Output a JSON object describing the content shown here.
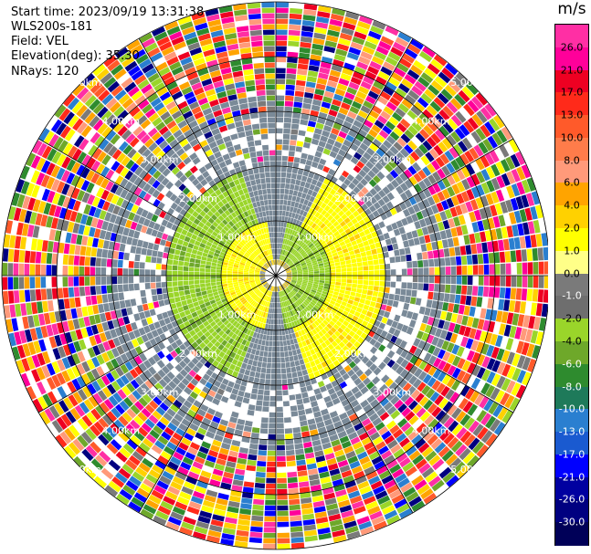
{
  "info": {
    "start_time": "Start time: 2023/09/19 13:31:38",
    "station": "WLS200s-181",
    "field": "Field: VEL",
    "elevation": "Elevation(deg): 35.30",
    "nrays": "NRays: 120"
  },
  "colorbar": {
    "unit": "m/s",
    "labels": [
      "26.0",
      "21.0",
      "17.0",
      "13.0",
      "10.0",
      "8.0",
      "6.0",
      "4.0",
      "2.0",
      "1.0",
      "0.0",
      "-1.0",
      "-2.0",
      "-4.0",
      "-6.0",
      "-8.0",
      "-10.0",
      "-13.0",
      "-17.0",
      "-21.0",
      "-26.0",
      "-30.0"
    ],
    "colors": [
      "#ff2fa4",
      "#ff009a",
      "#ee0022",
      "#ff2a1a",
      "#ff5a2a",
      "#ff7c4a",
      "#ff9a7a",
      "#ffa400",
      "#ffd100",
      "#ffff00",
      "#ffff88",
      "#7a7a7a",
      "#6e6e6e",
      "#9ad52a",
      "#6ea82a",
      "#2e8b2e",
      "#1e7a5a",
      "#2a7fd0",
      "#1a5ad0",
      "#0000ff",
      "#0000a0",
      "#000080",
      "#000058"
    ],
    "text_colors": [
      "#000",
      "#000",
      "#000",
      "#000",
      "#000",
      "#000",
      "#000",
      "#000",
      "#000",
      "#000",
      "#000",
      "#fff",
      "#000",
      "#000",
      "#fff",
      "#fff",
      "#fff",
      "#fff",
      "#fff",
      "#fff",
      "#fff",
      "#fff"
    ]
  },
  "ring_labels": [
    "1.00km",
    "2.00km",
    "3.00km",
    "4.00km",
    "5.00km"
  ],
  "palette": {
    "gray": "#7a8a98",
    "green_light": "#9ad52a",
    "green_dark": "#6ea82a",
    "yellow": "#ffd100",
    "yellow_bright": "#ffff00",
    "noise": [
      "#ff2fa4",
      "#ff009a",
      "#ee0022",
      "#ff2a1a",
      "#ff5a2a",
      "#ff9a7a",
      "#ffa400",
      "#ffd100",
      "#ffff00",
      "#9ad52a",
      "#6ea82a",
      "#2e8b2e",
      "#2a7fd0",
      "#0000ff",
      "#000080",
      "#7a7a7a",
      "#ffffff"
    ]
  }
}
